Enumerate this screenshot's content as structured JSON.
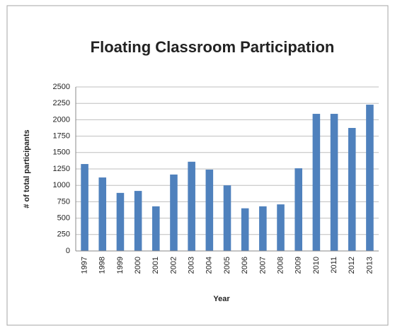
{
  "chart_data": {
    "type": "bar",
    "title": "Floating Classroom Participation",
    "x_label": "Year",
    "y_label": "# of total participants",
    "categories": [
      "1997",
      "1998",
      "1999",
      "2000",
      "2001",
      "2002",
      "2003",
      "2004",
      "2005",
      "2006",
      "2007",
      "2008",
      "2009",
      "2010",
      "2011",
      "2012",
      "2013"
    ],
    "values": [
      1325,
      1120,
      885,
      915,
      680,
      1165,
      1360,
      1240,
      1000,
      650,
      680,
      710,
      1260,
      2090,
      2090,
      1875,
      2230
    ],
    "color": "#4f81bd",
    "ylim": [
      0,
      2500
    ],
    "yticks": [
      0,
      250,
      500,
      750,
      1000,
      1250,
      1500,
      1750,
      2000,
      2250,
      2500
    ],
    "grid": true
  }
}
